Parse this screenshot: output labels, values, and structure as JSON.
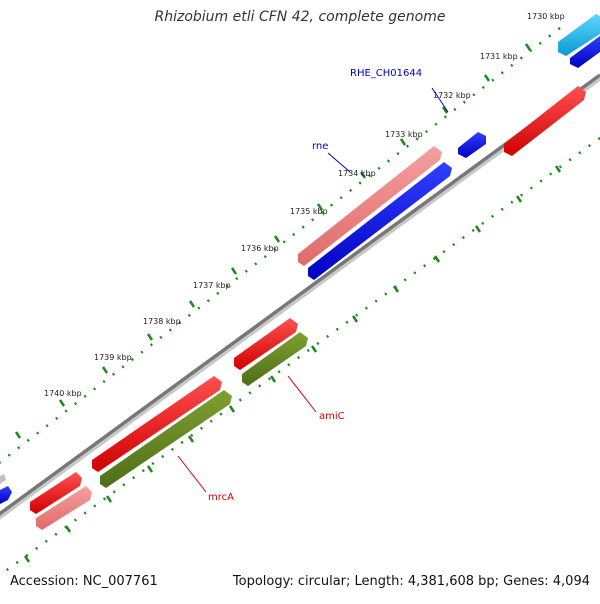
{
  "title": "Rhizobium etli CFN 42, complete genome",
  "footer": {
    "accession": "Accession: NC_007761",
    "summary": "Topology: circular; Length: 4,381,608 bp; Genes: 4,094"
  },
  "ticks": [
    "1730 kbp",
    "1731 kbp",
    "1732 kbp",
    "1733 kbp",
    "1734 kbp",
    "1735 kbp",
    "1736 kbp",
    "1737 kbp",
    "1738 kbp",
    "1739 kbp",
    "1740 kbp"
  ],
  "genes": [
    {
      "label": "RHE_CH01644",
      "color": "#0000cc"
    },
    {
      "label": "rne",
      "color": "#0000cc"
    },
    {
      "label": "amiC",
      "color": "#cc0000"
    },
    {
      "label": "mrcA",
      "color": "#cc0000"
    }
  ],
  "colors": {
    "backbone": "#808080",
    "forward_cds": "#ff0000",
    "reverse_cds": "#0000ff",
    "rna": "#f08080",
    "olive": "#6b8e23",
    "cyan": "#1fb6e6",
    "tick": "#1a8a1a"
  }
}
